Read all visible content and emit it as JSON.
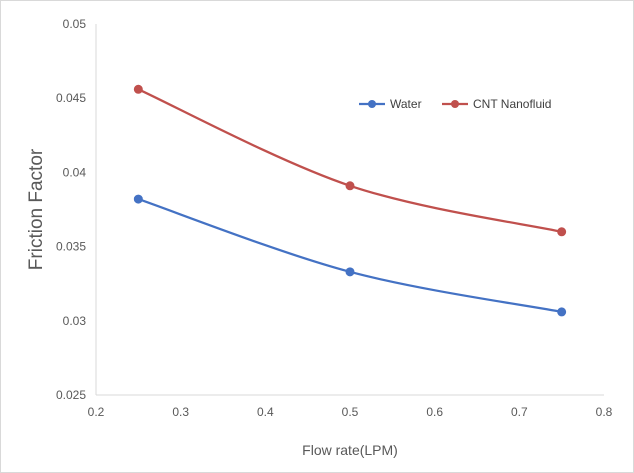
{
  "chart_data": {
    "type": "line",
    "title": "",
    "xlabel": "Flow rate(LPM)",
    "ylabel": "Friction Factor",
    "xlim": [
      0.2,
      0.8
    ],
    "ylim": [
      0.025,
      0.05
    ],
    "xticks": [
      "0.2",
      "0.3",
      "0.4",
      "0.5",
      "0.6",
      "0.7",
      "0.8"
    ],
    "yticks": [
      "0.025",
      "0.03",
      "0.035",
      "0.04",
      "0.045",
      "0.05"
    ],
    "grid": false,
    "smooth": true,
    "legend_position": "top-right",
    "series": [
      {
        "name": "Water",
        "color": "#4472c4",
        "x": [
          0.25,
          0.5,
          0.75
        ],
        "y": [
          0.0382,
          0.0333,
          0.0306
        ]
      },
      {
        "name": "CNT Nanofluid",
        "color": "#c0504d",
        "x": [
          0.25,
          0.5,
          0.75
        ],
        "y": [
          0.0456,
          0.0391,
          0.036
        ]
      }
    ]
  }
}
